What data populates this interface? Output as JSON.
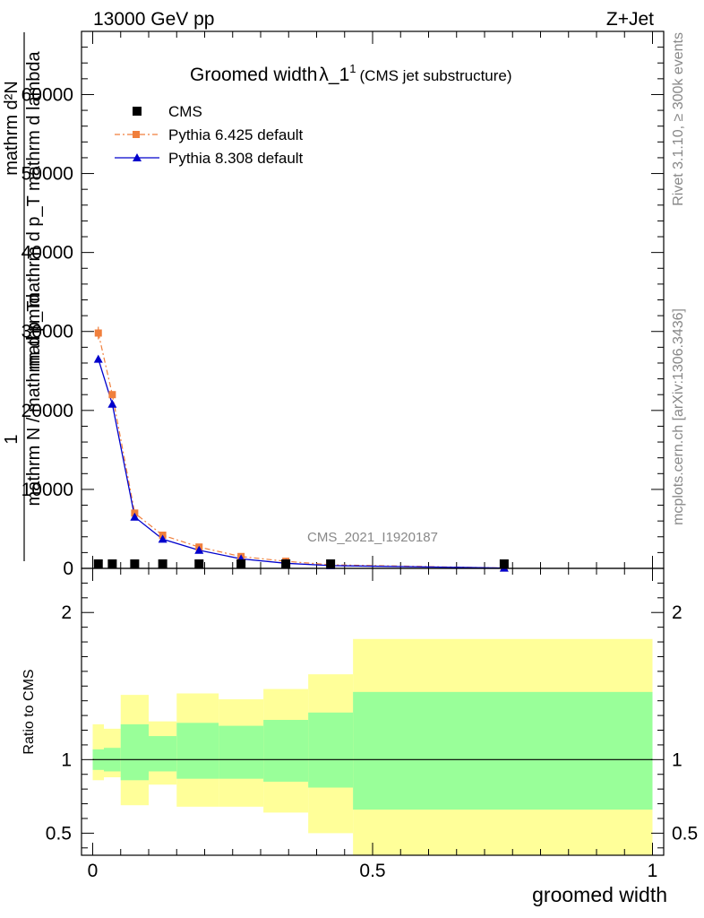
{
  "header": {
    "energy_label": "13000 GeV pp",
    "process_label": "Z+Jet"
  },
  "side_labels": {
    "rivet": "Rivet 3.1.10, ≥ 300k events",
    "mcplots": "mcplots.cern.ch [arXiv:1306.3436]"
  },
  "watermark": "CMS_2021_I1920187",
  "colors": {
    "cms": "#000000",
    "pythia6": "#f07f3c",
    "pythia8": "#0000cc",
    "band_inner": "#99ff99",
    "band_outer": "#ffff99"
  },
  "chart_data": [
    {
      "type": "line",
      "title_main": "Groomed width",
      "title_lambda": "λ_1",
      "title_sup": "1",
      "title_sub": "(CMS jet substructure)",
      "ylabel_top": "1",
      "ylabel_num": "mathrm d²N",
      "ylabel_num2": "mathrm d p_T mathrm d lambda",
      "ylabel_den": "mathrm N / mathrm d p_T",
      "ylabel_den2": "mathrm d",
      "xlim": [
        -0.02,
        1.02
      ],
      "ylim": [
        0,
        68000
      ],
      "yticks": [
        0,
        10000,
        20000,
        30000,
        40000,
        50000,
        60000
      ],
      "ytick_labels": [
        "0",
        "10000",
        "20000",
        "30000",
        "40000",
        "50000",
        "60000"
      ],
      "legend": [
        "CMS",
        "Pythia 6.425 default",
        "Pythia 8.308 default"
      ],
      "series": [
        {
          "name": "CMS",
          "x": [
            0.01,
            0.035,
            0.075,
            0.125,
            0.19,
            0.265,
            0.345,
            0.425,
            0.735
          ],
          "y": [
            60,
            40,
            30,
            25,
            20,
            15,
            10,
            8,
            3
          ]
        },
        {
          "name": "Pythia 6.425 default",
          "x": [
            0.01,
            0.035,
            0.075,
            0.125,
            0.19,
            0.265,
            0.345,
            0.425,
            0.735
          ],
          "y": [
            29800,
            22000,
            7000,
            4200,
            2700,
            1500,
            900,
            450,
            50
          ]
        },
        {
          "name": "Pythia 8.308 default",
          "x": [
            0.01,
            0.035,
            0.075,
            0.125,
            0.19,
            0.265,
            0.345,
            0.425,
            0.735
          ],
          "y": [
            26500,
            20800,
            6500,
            3700,
            2300,
            1200,
            650,
            350,
            40
          ]
        }
      ]
    },
    {
      "type": "area",
      "ylabel": "Ratio to CMS",
      "xlabel": "groomed width",
      "xlim": [
        -0.02,
        1.02
      ],
      "ylim": [
        0.35,
        2.3
      ],
      "yticks": [
        0.5,
        1,
        2
      ],
      "ytick_labels": [
        "0.5",
        "1",
        "2"
      ],
      "xticks": [
        0,
        0.5,
        1
      ],
      "xtick_labels": [
        "0",
        "0.5",
        "1"
      ],
      "bins": [
        {
          "lo": 0.0,
          "hi": 0.02,
          "inner": [
            0.93,
            1.07
          ],
          "outer": [
            0.86,
            1.24
          ]
        },
        {
          "lo": 0.02,
          "hi": 0.05,
          "inner": [
            0.92,
            1.08
          ],
          "outer": [
            0.88,
            1.21
          ]
        },
        {
          "lo": 0.05,
          "hi": 0.1,
          "inner": [
            0.86,
            1.24
          ],
          "outer": [
            0.69,
            1.44
          ]
        },
        {
          "lo": 0.1,
          "hi": 0.15,
          "inner": [
            0.92,
            1.16
          ],
          "outer": [
            0.83,
            1.26
          ]
        },
        {
          "lo": 0.15,
          "hi": 0.225,
          "inner": [
            0.87,
            1.25
          ],
          "outer": [
            0.68,
            1.45
          ]
        },
        {
          "lo": 0.225,
          "hi": 0.305,
          "inner": [
            0.87,
            1.23
          ],
          "outer": [
            0.68,
            1.41
          ]
        },
        {
          "lo": 0.305,
          "hi": 0.385,
          "inner": [
            0.85,
            1.27
          ],
          "outer": [
            0.64,
            1.48
          ]
        },
        {
          "lo": 0.385,
          "hi": 0.465,
          "inner": [
            0.81,
            1.32
          ],
          "outer": [
            0.5,
            1.58
          ]
        },
        {
          "lo": 0.465,
          "hi": 1.0,
          "inner": [
            0.66,
            1.46
          ],
          "outer": [
            0.35,
            1.82
          ]
        }
      ]
    }
  ]
}
